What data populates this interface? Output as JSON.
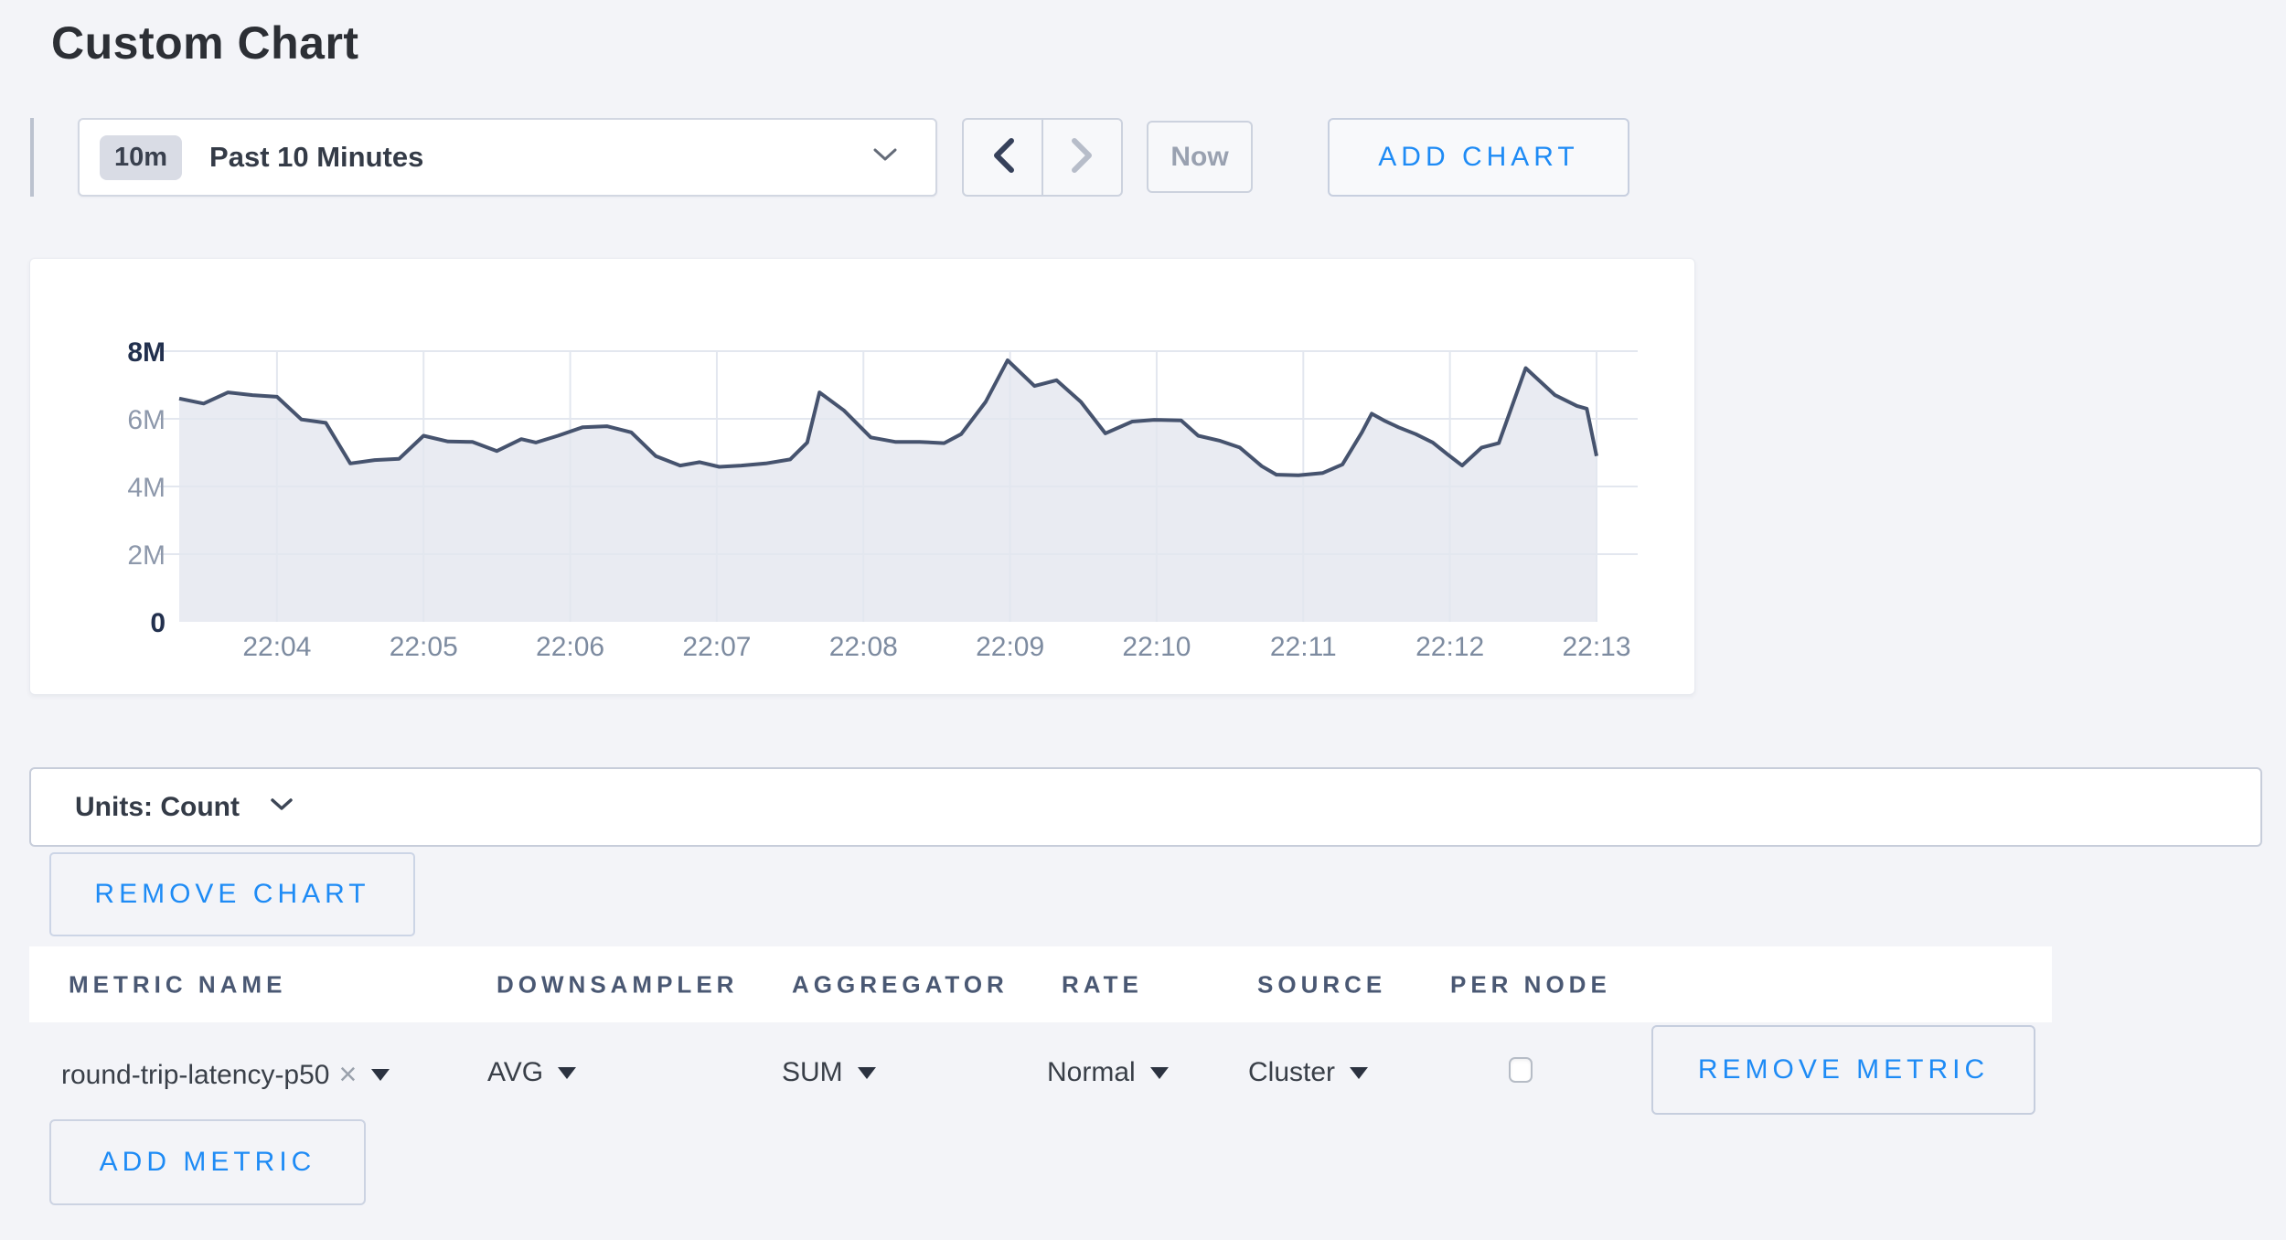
{
  "page": {
    "title": "Custom Chart",
    "background": "#f3f4f8",
    "accent_blue": "#1e8bf5"
  },
  "toolbar": {
    "time_range": {
      "badge": "10m",
      "label": "Past 10 Minutes"
    },
    "prev_icon": "chevron-left-icon",
    "next_icon": "chevron-right-icon",
    "now_label": "Now",
    "add_chart_label": "ADD CHART"
  },
  "chart_data": {
    "type": "area",
    "title": "",
    "xlabel": "",
    "ylabel": "",
    "units": "Count",
    "ylim_millions": [
      0,
      8
    ],
    "grid": true,
    "t_span_seconds": 580,
    "x_ticks": [
      {
        "label": "22:04",
        "t": 40
      },
      {
        "label": "22:05",
        "t": 100
      },
      {
        "label": "22:06",
        "t": 160
      },
      {
        "label": "22:07",
        "t": 220
      },
      {
        "label": "22:08",
        "t": 280
      },
      {
        "label": "22:09",
        "t": 340
      },
      {
        "label": "22:10",
        "t": 400
      },
      {
        "label": "22:11",
        "t": 460
      },
      {
        "label": "22:12",
        "t": 520
      },
      {
        "label": "22:13",
        "t": 580
      }
    ],
    "y_ticks": [
      {
        "label": "0",
        "value": 0,
        "emphasis": true
      },
      {
        "label": "2M",
        "value": 2,
        "emphasis": false
      },
      {
        "label": "4M",
        "value": 4,
        "emphasis": false
      },
      {
        "label": "6M",
        "value": 6,
        "emphasis": false
      },
      {
        "label": "8M",
        "value": 8,
        "emphasis": true
      }
    ],
    "series": [
      {
        "name": "round-trip-latency-p50",
        "t_seconds": [
          0,
          10,
          20,
          30,
          40,
          50,
          60,
          70,
          80,
          90,
          100,
          110,
          120,
          130,
          140,
          146,
          155,
          165,
          175,
          185,
          195,
          205,
          213,
          221,
          230,
          240,
          250,
          257,
          262,
          272,
          283,
          293,
          303,
          313,
          320,
          330,
          339,
          350,
          359,
          369,
          379,
          390,
          399,
          410,
          417,
          426,
          434,
          443,
          449,
          458,
          468,
          476,
          484,
          488,
          493,
          499,
          506,
          513,
          519,
          525,
          533,
          540,
          551,
          563,
          572,
          576,
          580
        ],
        "values_millions": [
          6.6,
          6.45,
          6.78,
          6.7,
          6.65,
          5.98,
          5.88,
          4.68,
          4.78,
          4.82,
          5.5,
          5.33,
          5.32,
          5.05,
          5.4,
          5.3,
          5.5,
          5.75,
          5.78,
          5.6,
          4.9,
          4.62,
          4.72,
          4.58,
          4.62,
          4.68,
          4.8,
          5.3,
          6.78,
          6.25,
          5.45,
          5.32,
          5.32,
          5.28,
          5.55,
          6.5,
          7.73,
          6.97,
          7.14,
          6.5,
          5.57,
          5.92,
          5.97,
          5.95,
          5.5,
          5.35,
          5.15,
          4.6,
          4.35,
          4.33,
          4.4,
          4.65,
          5.6,
          6.15,
          5.95,
          5.75,
          5.55,
          5.3,
          4.95,
          4.62,
          5.15,
          5.28,
          7.5,
          6.7,
          6.38,
          6.3,
          4.9
        ]
      }
    ],
    "style": {
      "line": "#46536e",
      "fill": "#e9ebf2",
      "grid": "#e3e7ef",
      "tick_minor": "#8d98ab",
      "tick_major": "#22304e",
      "x_tick": "#7d8ba0"
    }
  },
  "units_bar": {
    "label": "Units: Count"
  },
  "actions": {
    "remove_chart_label": "REMOVE CHART"
  },
  "metrics_table": {
    "columns": [
      "METRIC NAME",
      "DOWNSAMPLER",
      "AGGREGATOR",
      "RATE",
      "SOURCE",
      "PER NODE"
    ],
    "rows": [
      {
        "metric_name": "round-trip-latency-p50",
        "remove_tag": "×",
        "downsampler": "AVG",
        "aggregator": "SUM",
        "rate": "Normal",
        "source": "Cluster",
        "per_node_checked": false,
        "remove_label": "REMOVE METRIC"
      }
    ],
    "add_metric_label": "ADD METRIC"
  }
}
